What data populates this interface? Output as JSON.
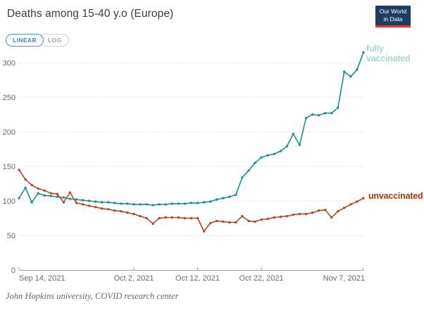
{
  "header": {
    "title": "Deaths among 15-40 y.o (Europe)",
    "badge": {
      "line1": "Our World",
      "line2": "in Data"
    }
  },
  "toolbar": {
    "linear_label": "LINEAR",
    "log_label": "LOG"
  },
  "chart_data": {
    "type": "line",
    "title": "Deaths among 15-40 y.o (Europe)",
    "year": "2021",
    "x": [
      "Sep 14",
      "Sep 15",
      "Sep 16",
      "Sep 17",
      "Sep 18",
      "Sep 19",
      "Sep 20",
      "Sep 21",
      "Sep 22",
      "Sep 23",
      "Sep 24",
      "Sep 25",
      "Sep 26",
      "Sep 27",
      "Sep 28",
      "Sep 29",
      "Sep 30",
      "Oct 1",
      "Oct 2",
      "Oct 3",
      "Oct 4",
      "Oct 5",
      "Oct 6",
      "Oct 7",
      "Oct 8",
      "Oct 9",
      "Oct 10",
      "Oct 11",
      "Oct 12",
      "Oct 13",
      "Oct 14",
      "Oct 15",
      "Oct 16",
      "Oct 17",
      "Oct 18",
      "Oct 19",
      "Oct 20",
      "Oct 21",
      "Oct 22",
      "Oct 23",
      "Oct 24",
      "Oct 25",
      "Oct 26",
      "Oct 27",
      "Oct 28",
      "Oct 29",
      "Oct 30",
      "Oct 31",
      "Nov 1",
      "Nov 2",
      "Nov 3",
      "Nov 4",
      "Nov 5",
      "Nov 6",
      "Nov 7"
    ],
    "series": [
      {
        "name": "fully vaccinated",
        "line_color": "#1d8f8d",
        "label_color": "#a9d6d4",
        "values": [
          104,
          119,
          98,
          111,
          108,
          107,
          106,
          105,
          103,
          102,
          101,
          100,
          99,
          98,
          98,
          97,
          96,
          96,
          95,
          95,
          95,
          94,
          95,
          95,
          96,
          96,
          96,
          97,
          97,
          98,
          99,
          102,
          104,
          106,
          109,
          134,
          144,
          155,
          163,
          166,
          168,
          172,
          179,
          197,
          181,
          220,
          225,
          224,
          227,
          227,
          235,
          287,
          280,
          290,
          315
        ]
      },
      {
        "name": "unvaccinated",
        "line_color": "#b5472a",
        "label_color": "#b13507",
        "values": [
          145,
          131,
          123,
          118,
          115,
          111,
          110,
          98,
          112,
          97,
          95,
          93,
          91,
          89,
          88,
          86,
          85,
          83,
          81,
          78,
          75,
          67,
          75,
          76,
          76,
          76,
          75,
          75,
          75,
          56,
          68,
          71,
          70,
          69,
          69,
          78,
          71,
          70,
          73,
          74,
          76,
          77,
          78,
          80,
          81,
          81,
          83,
          86,
          87,
          76,
          85,
          90,
          95,
          99,
          104
        ]
      }
    ],
    "x_tick_labels": [
      "Sep 14, 2021",
      "Oct 2, 2021",
      "Oct 12, 2021",
      "Oct 22, 2021",
      "Nov 7, 2021"
    ],
    "x_tick_day_indices": [
      0,
      18,
      28,
      38,
      54
    ],
    "y_ticks": [
      0,
      50,
      100,
      150,
      200,
      250,
      300
    ],
    "ylim": [
      0,
      320
    ],
    "grid": "horizontal-dotted",
    "legend_position": "end-of-line-labels",
    "axis_color": "#a3a3a3",
    "grid_color": "#d9d9d9",
    "tick_label_color": "#6b6b6b"
  },
  "footer": {
    "source_note": "John Hopkins university, COVID research center"
  }
}
